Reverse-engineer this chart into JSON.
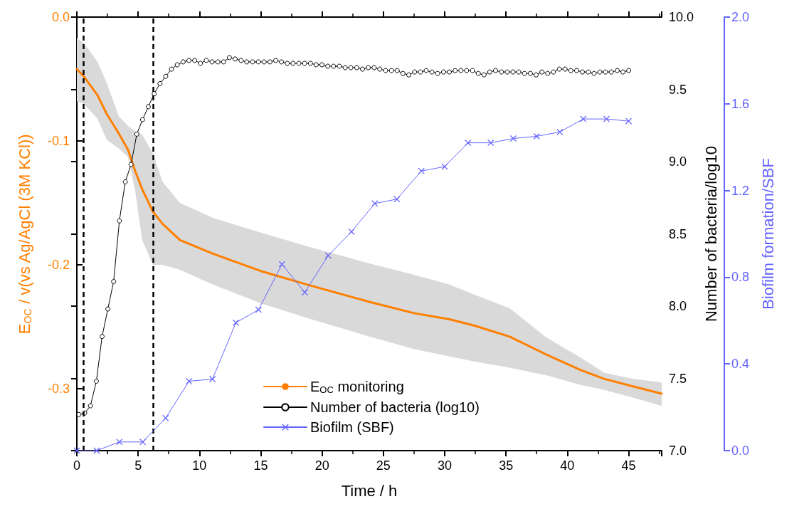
{
  "chart_data": {
    "type": "line",
    "xlabel": "Time / h",
    "ylabel": "E$_{OC}$ / v(vs Ag/AgCl (3M KCl))",
    "y2label": "Number of bacteria/log10",
    "y3label": "Biofilm formation/SBF",
    "xlim": [
      0,
      47.7
    ],
    "xticks": [
      0,
      5,
      10,
      15,
      20,
      25,
      30,
      35,
      40,
      45
    ],
    "ylim": [
      -0.35,
      0
    ],
    "yticks": [
      -0.3,
      -0.2,
      -0.1,
      {
        "value": 0,
        "label": "0.0"
      }
    ],
    "y2lim": [
      7,
      10
    ],
    "y2ticks": [
      {
        "value": 7,
        "label": "7.0"
      },
      7.5,
      {
        "value": 8,
        "label": "8.0"
      },
      8.5,
      {
        "value": 9,
        "label": "9.0"
      },
      9.5,
      {
        "value": 10,
        "label": "10.0"
      }
    ],
    "y3lim": [
      0,
      2
    ],
    "y3ticks": [
      {
        "value": 0,
        "label": "0.0"
      },
      0.4,
      0.8,
      1.2,
      1.6,
      {
        "value": 2,
        "label": "2.0"
      }
    ],
    "grid": false,
    "legend": "bottom",
    "ref_lines": [
      {
        "axis": "x",
        "value": 0.55,
        "color": "#000000",
        "line_style": "dashed"
      },
      {
        "axis": "x",
        "value": 6.25,
        "color": "#000000",
        "line_style": "dashed"
      }
    ],
    "series": [
      {
        "name": "E$_{OC}$ monitoring",
        "color": "#ff7f00",
        "marker": "none",
        "x": [
          0,
          0.58,
          1.68,
          2.43,
          3.42,
          4.17,
          4.75,
          5.33,
          6.2,
          7.0,
          8.4,
          11.1,
          15.0,
          18.8,
          23.9,
          27.5,
          30.4,
          32.4,
          35.3,
          38.2,
          41.1,
          43.0,
          45.3,
          47.7
        ],
        "values": [
          -0.042,
          -0.048,
          -0.063,
          -0.078,
          -0.094,
          -0.107,
          -0.124,
          -0.139,
          -0.157,
          -0.167,
          -0.18,
          -0.191,
          -0.205,
          -0.216,
          -0.23,
          -0.239,
          -0.244,
          -0.249,
          -0.258,
          -0.272,
          -0.285,
          -0.292,
          -0.298,
          -0.304
        ],
        "lower": [
          -0.068,
          -0.07,
          -0.082,
          -0.099,
          -0.106,
          -0.113,
          -0.14,
          -0.18,
          -0.2,
          -0.2,
          -0.204,
          -0.216,
          -0.231,
          -0.243,
          -0.258,
          -0.268,
          -0.274,
          -0.278,
          -0.283,
          -0.289,
          -0.297,
          -0.301,
          -0.307,
          -0.314
        ],
        "upper": [
          -0.017,
          -0.021,
          -0.036,
          -0.053,
          -0.08,
          -0.088,
          -0.092,
          -0.095,
          -0.11,
          -0.133,
          -0.15,
          -0.162,
          -0.174,
          -0.185,
          -0.199,
          -0.208,
          -0.216,
          -0.224,
          -0.235,
          -0.258,
          -0.275,
          -0.287,
          -0.292,
          -0.295
        ]
      },
      {
        "name": "Number of bacteria (log10)",
        "color": "#000000",
        "marker": "circle",
        "axis": "y2",
        "x": [
          0.17,
          0.64,
          1.11,
          1.59,
          2.06,
          2.53,
          3.0,
          3.47,
          3.95,
          4.42,
          4.89,
          5.36,
          5.83,
          6.31,
          6.78,
          7.25,
          7.72,
          8.19,
          8.67,
          9.14,
          9.61,
          10.08,
          10.55,
          11.03,
          11.5,
          11.97,
          12.44,
          12.91,
          13.39,
          13.86,
          14.33,
          14.8,
          15.27,
          15.75,
          16.22,
          16.69,
          17.16,
          17.63,
          18.11,
          18.58,
          19.05,
          19.52,
          19.99,
          20.47,
          20.94,
          21.41,
          21.88,
          22.35,
          22.83,
          23.3,
          23.77,
          24.24,
          24.71,
          25.19,
          25.66,
          26.13,
          26.6,
          27.07,
          27.55,
          28.02,
          28.49,
          28.96,
          29.43,
          29.91,
          30.38,
          30.85,
          31.32,
          31.79,
          32.27,
          32.74,
          33.21,
          33.68,
          34.15,
          34.63,
          35.1,
          35.57,
          36.04,
          36.51,
          36.99,
          37.46,
          37.93,
          38.4,
          38.87,
          39.35,
          39.82,
          40.29,
          40.76,
          41.23,
          41.71,
          42.18,
          42.65,
          43.12,
          43.59,
          44.07,
          44.54,
          45.01
        ],
        "values": [
          7.25,
          7.26,
          7.31,
          7.48,
          7.79,
          7.98,
          8.17,
          8.59,
          8.86,
          8.98,
          9.19,
          9.29,
          9.38,
          9.47,
          9.54,
          9.59,
          9.64,
          9.67,
          9.69,
          9.7,
          9.7,
          9.68,
          9.7,
          9.69,
          9.69,
          9.69,
          9.72,
          9.71,
          9.7,
          9.69,
          9.69,
          9.69,
          9.69,
          9.69,
          9.7,
          9.69,
          9.68,
          9.68,
          9.68,
          9.68,
          9.68,
          9.67,
          9.67,
          9.66,
          9.66,
          9.66,
          9.65,
          9.65,
          9.65,
          9.64,
          9.65,
          9.65,
          9.64,
          9.63,
          9.63,
          9.63,
          9.61,
          9.6,
          9.62,
          9.62,
          9.63,
          9.62,
          9.61,
          9.62,
          9.62,
          9.63,
          9.63,
          9.63,
          9.63,
          9.61,
          9.6,
          9.62,
          9.63,
          9.62,
          9.62,
          9.62,
          9.62,
          9.61,
          9.61,
          9.6,
          9.62,
          9.61,
          9.62,
          9.64,
          9.64,
          9.63,
          9.63,
          9.62,
          9.62,
          9.61,
          9.62,
          9.62,
          9.62,
          9.63,
          9.62,
          9.63
        ]
      },
      {
        "name": "Biofilm (SBF)",
        "color": "#6464ff",
        "marker": "cross",
        "axis": "y3",
        "x": [
          0,
          1.62,
          3.47,
          5.38,
          7.24,
          9.15,
          11.06,
          12.97,
          14.82,
          16.73,
          18.59,
          20.5,
          22.4,
          24.3,
          26.1,
          28.1,
          30.0,
          31.9,
          33.76,
          35.6,
          37.5,
          39.4,
          41.3,
          43.2,
          45.0
        ],
        "values": [
          0,
          0,
          0.04,
          0.04,
          0.15,
          0.32,
          0.33,
          0.59,
          0.65,
          0.86,
          0.73,
          0.9,
          1.01,
          1.14,
          1.16,
          1.29,
          1.31,
          1.42,
          1.42,
          1.44,
          1.45,
          1.47,
          1.53,
          1.53,
          1.52
        ]
      }
    ]
  }
}
